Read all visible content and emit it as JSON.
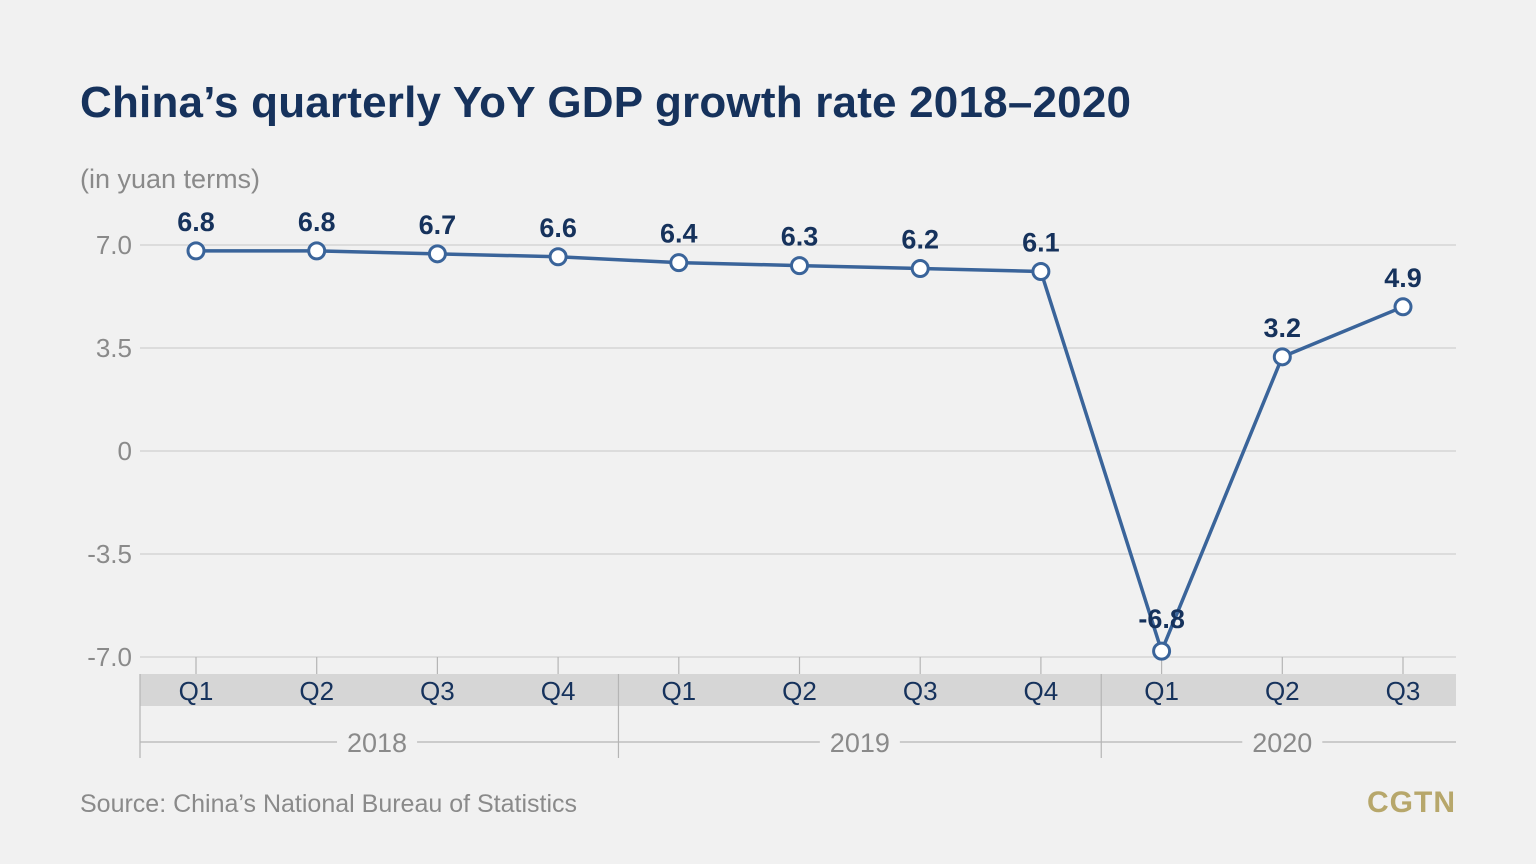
{
  "title": "China’s quarterly YoY GDP growth rate 2018–2020",
  "subtitle": "(in yuan terms)",
  "source": "Source: China’s National Bureau of Statistics",
  "brand": "CGTN",
  "colors": {
    "line": "#3a649a",
    "text": "#16325c",
    "grid": "#d0d0d0",
    "band": "#d6d6d6",
    "brand": "#b7a76b"
  },
  "chart_data": {
    "type": "line",
    "title": "China’s quarterly YoY GDP growth rate 2018–2020",
    "ylabel": "(in yuan terms)",
    "categories": [
      "Q1",
      "Q2",
      "Q3",
      "Q4",
      "Q1",
      "Q2",
      "Q3",
      "Q4",
      "Q1",
      "Q2",
      "Q3"
    ],
    "values": [
      6.8,
      6.8,
      6.7,
      6.6,
      6.4,
      6.3,
      6.2,
      6.1,
      -6.8,
      3.2,
      4.9
    ],
    "data_labels": [
      "6.8",
      "6.8",
      "6.7",
      "6.6",
      "6.4",
      "6.3",
      "6.2",
      "6.1",
      "-6.8",
      "3.2",
      "4.9"
    ],
    "years": [
      {
        "label": "2018",
        "start": 0,
        "end": 3
      },
      {
        "label": "2019",
        "start": 4,
        "end": 7
      },
      {
        "label": "2020",
        "start": 8,
        "end": 10
      }
    ],
    "yticks": [
      7.0,
      3.5,
      0,
      -3.5,
      -7.0
    ],
    "ytick_labels": [
      "7.0",
      "3.5",
      "0",
      "-3.5",
      "-7.0"
    ],
    "ylim": [
      -7.0,
      7.0
    ],
    "grid": true,
    "legend": "none"
  }
}
